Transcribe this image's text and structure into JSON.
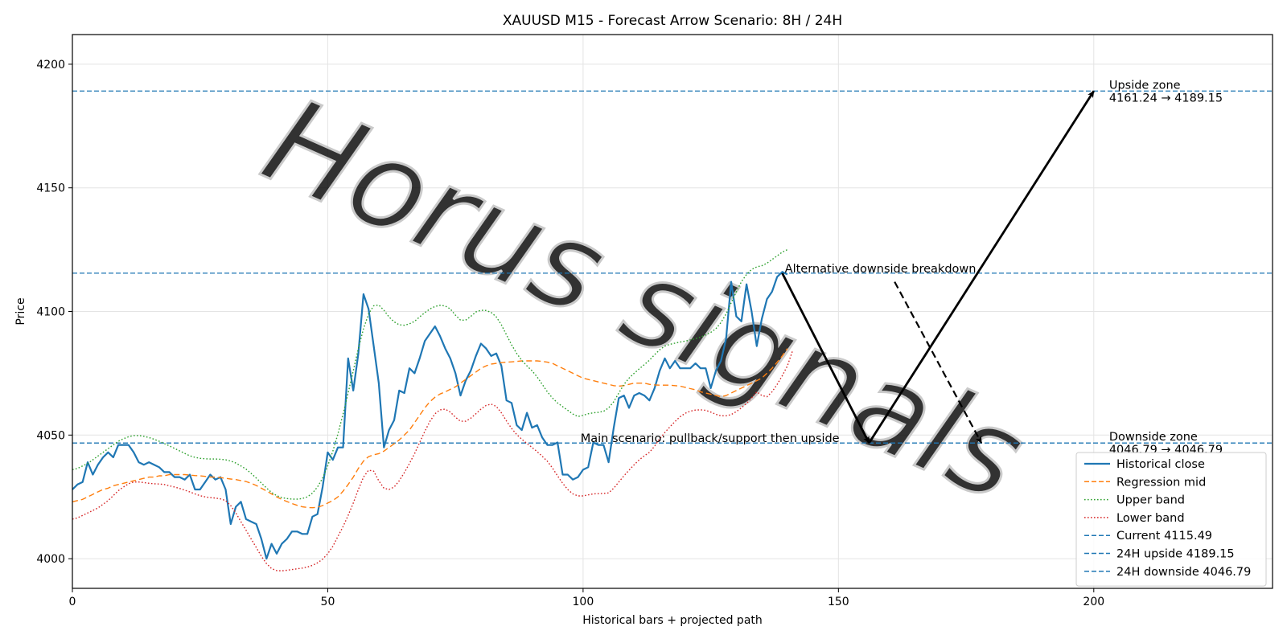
{
  "chart_data": {
    "type": "line",
    "title": "XAUUSD M15 - Forecast Arrow Scenario: 8H / 24H",
    "xlabel": "Historical bars + projected path",
    "ylabel": "Price",
    "xlim": [
      0,
      235
    ],
    "ylim": [
      3988,
      4212
    ],
    "xticks": [
      0,
      50,
      100,
      150,
      200
    ],
    "yticks": [
      4000,
      4050,
      4100,
      4150,
      4200
    ],
    "grid": true,
    "legend_position": "lower-right",
    "watermark": "Horus signals",
    "series": [
      {
        "name": "Historical close",
        "color": "#1f77b4",
        "style": "solid",
        "values": [
          4028,
          4030,
          4031,
          4039,
          4034,
          4038,
          4041,
          4043,
          4041,
          4046,
          4046,
          4046,
          4043,
          4039,
          4038,
          4039,
          4038,
          4037,
          4035,
          4035,
          4033,
          4033,
          4032,
          4034,
          4028,
          4028,
          4031,
          4034,
          4032,
          4033,
          4028,
          4014,
          4021,
          4023,
          4016,
          4015,
          4014,
          4008,
          4000,
          4006,
          4002,
          4006,
          4008,
          4011,
          4011,
          4010,
          4010,
          4017,
          4018,
          4029,
          4043,
          4040,
          4045,
          4045,
          4081,
          4068,
          4083,
          4107,
          4101,
          4086,
          4071,
          4045,
          4052,
          4056,
          4068,
          4067,
          4077,
          4075,
          4081,
          4088,
          4091,
          4094,
          4090,
          4085,
          4081,
          4075,
          4066,
          4072,
          4076,
          4082,
          4087,
          4085,
          4082,
          4083,
          4078,
          4064,
          4063,
          4054,
          4052,
          4059,
          4053,
          4054,
          4049,
          4046,
          4046,
          4047,
          4034,
          4034,
          4032,
          4033,
          4036,
          4037,
          4047,
          4046,
          4046,
          4039,
          4053,
          4065,
          4066,
          4061,
          4066,
          4067,
          4066,
          4064,
          4069,
          4076,
          4081,
          4077,
          4080,
          4077,
          4077,
          4077,
          4079,
          4077,
          4077,
          4069,
          4076,
          4080,
          4089,
          4112,
          4098,
          4096,
          4111,
          4100,
          4086,
          4097,
          4105,
          4108,
          4114,
          4116,
          4115
        ]
      },
      {
        "name": "Regression mid",
        "color": "#ff7f0e",
        "style": "dashed",
        "values": [
          4023,
          4023.5,
          4024,
          4025,
          4026,
          4027,
          4028,
          4028.5,
          4029.5,
          4030,
          4030.5,
          4031,
          4031.5,
          4032,
          4032.5,
          4033,
          4033,
          4033.5,
          4033.5,
          4034,
          4034,
          4034,
          4034,
          4033.8,
          4033.6,
          4033.5,
          4033.3,
          4033,
          4033,
          4032.8,
          4032.5,
          4032.2,
          4032,
          4031.6,
          4031.2,
          4030.5,
          4029.6,
          4028.5,
          4027.4,
          4026.2,
          4025,
          4024,
          4023.1,
          4022.3,
          4021.6,
          4021,
          4020.7,
          4020.6,
          4020.8,
          4021.5,
          4022.5,
          4023.5,
          4025,
          4027.3,
          4030,
          4033,
          4036.5,
          4039.5,
          4041.3,
          4042,
          4042.5,
          4043.5,
          4045,
          4046.5,
          4048,
          4050,
          4052,
          4055,
          4058,
          4061,
          4063.5,
          4065.3,
          4066.6,
          4067.5,
          4068.5,
          4069.5,
          4071,
          4072.5,
          4074,
          4075.5,
          4077,
          4078,
          4078.7,
          4079,
          4079.3,
          4079.5,
          4079.6,
          4079.8,
          4080,
          4080,
          4080,
          4080,
          4079.8,
          4079.5,
          4079,
          4078,
          4077,
          4076,
          4075,
          4074,
          4073,
          4072.5,
          4072,
          4071.5,
          4071,
          4070.5,
          4070,
          4069.8,
          4070,
          4070.5,
          4071,
          4071,
          4071,
          4070.5,
          4070.3,
          4070.2,
          4070.2,
          4070.2,
          4070,
          4069.8,
          4069.3,
          4068.8,
          4068.3,
          4067.5,
          4067,
          4066.5,
          4066,
          4065.5,
          4066,
          4067,
          4068,
          4069,
          4070,
          4071,
          4072,
          4073,
          4075,
          4077,
          4079.5,
          4082,
          4085
        ]
      },
      {
        "name": "Upper band",
        "color": "#2ca02c",
        "style": "dotted",
        "values": [
          4036,
          4036.5,
          4037.5,
          4038.5,
          4040,
          4041.5,
          4043,
          4044.5,
          4046,
          4047.5,
          4048.5,
          4049.3,
          4049.8,
          4049.8,
          4049.5,
          4049,
          4048.3,
          4047.5,
          4046.6,
          4045.6,
          4044.6,
          4043.6,
          4042.6,
          4041.6,
          4041,
          4040.6,
          4040.4,
          4040.3,
          4040.3,
          4040.2,
          4040,
          4039.5,
          4038.7,
          4037.5,
          4036.2,
          4034.5,
          4032.6,
          4030.6,
          4028.6,
          4026.8,
          4025.5,
          4024.7,
          4024.3,
          4024.1,
          4024.1,
          4024.3,
          4025,
          4026.5,
          4029,
          4032.6,
          4037.5,
          4043.5,
          4050.5,
          4058.5,
          4067,
          4076,
          4085,
          4093,
          4099,
          4102.3,
          4102.6,
          4100.5,
          4097.8,
          4095.8,
          4094.6,
          4094.4,
          4095,
          4096,
          4097.8,
          4099.5,
          4101,
          4102,
          4102.5,
          4102.2,
          4101,
          4098.5,
          4096.5,
          4096.5,
          4098,
          4099.8,
          4100.5,
          4100.4,
          4099.6,
          4097.8,
          4094.6,
          4090.5,
          4086.5,
          4083,
          4080.2,
          4078,
          4076,
          4073.5,
          4070.5,
          4067.5,
          4065,
          4063,
          4061.5,
          4060,
          4058.5,
          4057.5,
          4058,
          4058.6,
          4059,
          4059.2,
          4059.6,
          4061,
          4063.5,
          4067,
          4070.5,
          4073,
          4075,
          4076.8,
          4078.5,
          4080.3,
          4082.5,
          4084.5,
          4086,
          4086.7,
          4087.2,
          4087.6,
          4088,
          4088.5,
          4089,
          4089.6,
          4090.5,
          4091.5,
          4093,
          4095.5,
          4099,
          4103.5,
          4108,
          4112,
          4115,
          4117,
          4118,
          4118.5,
          4119.5,
          4121,
          4122.5,
          4124,
          4125
        ]
      },
      {
        "name": "Lower band",
        "color": "#d62728",
        "style": "dotted",
        "values": [
          4016,
          4016.5,
          4017.5,
          4018.5,
          4019.5,
          4020.5,
          4022,
          4023.5,
          4025.5,
          4027.5,
          4029,
          4030.3,
          4031,
          4031,
          4030.8,
          4030.5,
          4030.3,
          4030.2,
          4030,
          4029.5,
          4029,
          4028.4,
          4027.7,
          4027,
          4026.2,
          4025.5,
          4025,
          4024.7,
          4024.5,
          4024.2,
          4023.5,
          4021.5,
          4018.5,
          4015,
          4011.5,
          4008,
          4004.5,
          4001,
          3998,
          3996,
          3995.2,
          3995.1,
          3995.3,
          3995.6,
          3995.9,
          3996.2,
          3996.6,
          3997.3,
          3998.3,
          3999.8,
          4002,
          4005,
          4009,
          4013,
          4017.5,
          4022.5,
          4028,
          4033,
          4035.8,
          4035.4,
          4031.5,
          4028.5,
          4028,
          4029,
          4031.5,
          4034.8,
          4038.5,
          4042.5,
          4047,
          4051.5,
          4055.5,
          4058.6,
          4060.2,
          4060.5,
          4059.3,
          4057.2,
          4055.6,
          4055.6,
          4056.8,
          4058.6,
          4060.5,
          4062,
          4062.5,
          4061.6,
          4059,
          4055.7,
          4052.7,
          4050.2,
          4048.3,
          4046.6,
          4045,
          4043.3,
          4041.4,
          4039.4,
          4036.7,
          4033.5,
          4030.5,
          4028,
          4026.2,
          4025.4,
          4025.4,
          4025.8,
          4026.2,
          4026.3,
          4026.4,
          4026.6,
          4028.5,
          4031,
          4033.5,
          4035.8,
          4038,
          4040,
          4041.6,
          4043,
          4045.5,
          4048.5,
          4051,
          4053.3,
          4055.5,
          4057.4,
          4058.8,
          4059.7,
          4060.1,
          4060.2,
          4060,
          4059.3,
          4058.4,
          4057.8,
          4057.8,
          4058.3,
          4059.5,
          4061,
          4062.8,
          4065,
          4067.5,
          4066,
          4065.5,
          4067.5,
          4070.5,
          4074,
          4078,
          4084
        ]
      }
    ],
    "hlines": [
      {
        "name": "Current 4115.49",
        "y": 4115.49,
        "color": "#1f77b4",
        "style": "dashed"
      },
      {
        "name": "24H upside 4189.15",
        "y": 4189.15,
        "color": "#1f77b4",
        "style": "dashed"
      },
      {
        "name": "24H downside 4046.79",
        "y": 4046.79,
        "color": "#1f77b4",
        "style": "dashed"
      }
    ],
    "arrows": [
      {
        "from": [
          139,
          4115.49
        ],
        "to": [
          156,
          4046.79
        ],
        "style": "solid"
      },
      {
        "from": [
          156,
          4046.79
        ],
        "to": [
          200,
          4189.15
        ],
        "style": "solid"
      },
      {
        "from": [
          161,
          4112
        ],
        "to": [
          178,
          4046.79
        ],
        "style": "dashed"
      }
    ],
    "annotations": [
      {
        "text": "Alternative downside breakdown",
        "x": 139.5,
        "y": 4115.49
      },
      {
        "text": "Main scenario: pullback/support then upside",
        "x": 99.5,
        "y": 4046.79
      },
      {
        "text": "Upside zone",
        "x": 203,
        "y": 4189.15,
        "line": 1
      },
      {
        "text": "4161.24 → 4189.15",
        "x": 203,
        "y": 4189.15,
        "line": 2
      },
      {
        "text": "Downside zone",
        "x": 203,
        "y": 4046.79,
        "line": 1
      },
      {
        "text": "4046.79 → 4046.79",
        "x": 203,
        "y": 4046.79,
        "line": 2
      }
    ]
  }
}
